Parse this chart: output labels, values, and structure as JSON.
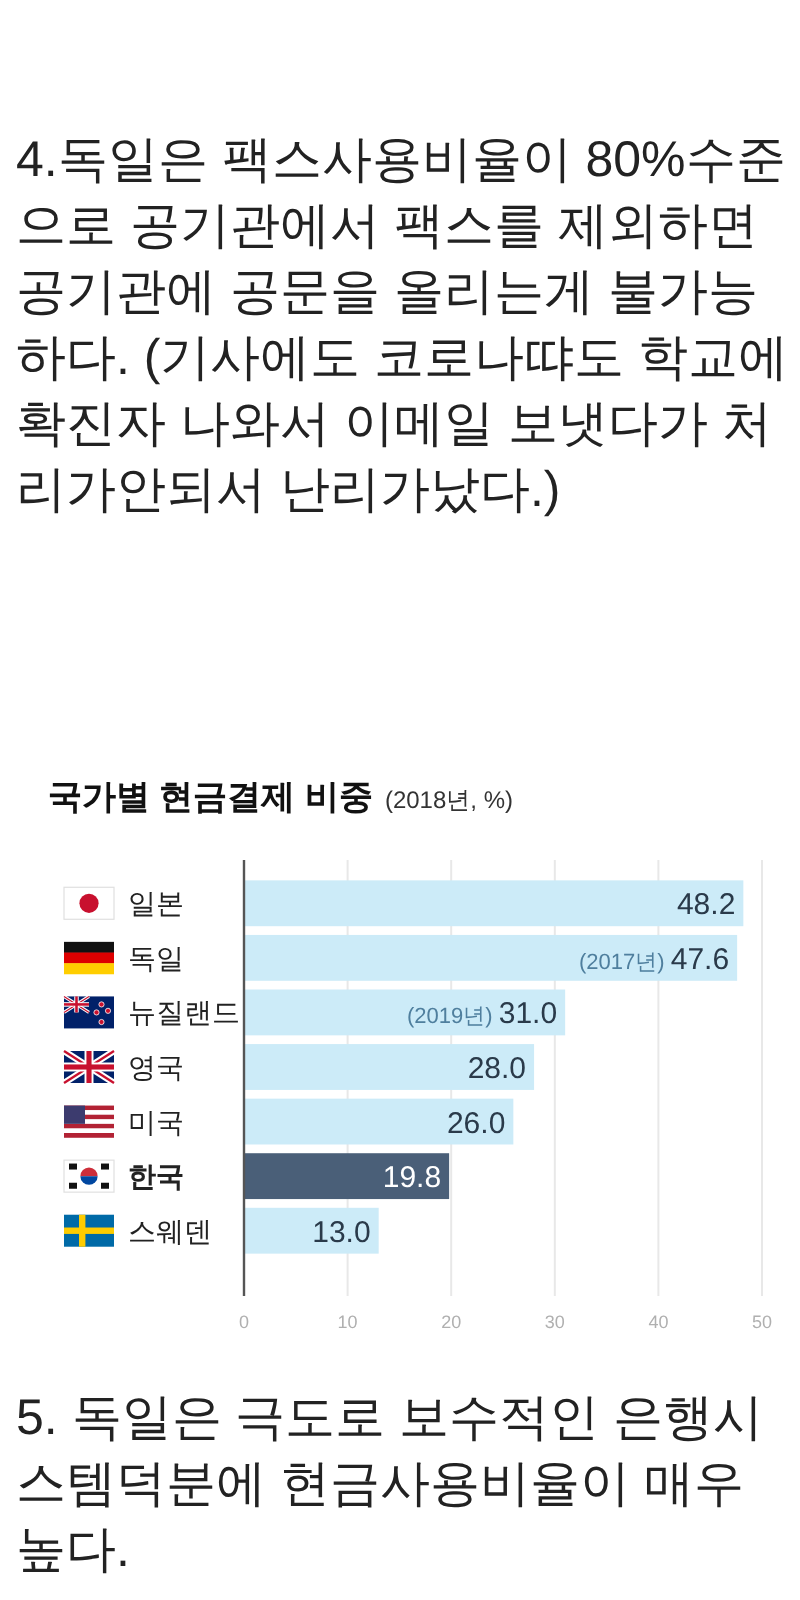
{
  "chart_data": {
    "type": "bar",
    "orientation": "horizontal",
    "title": "국가별 현금결제 비중",
    "subtitle": "(2018년, %)",
    "categories": [
      "일본",
      "독일",
      "뉴질랜드",
      "영국",
      "미국",
      "한국",
      "스웨덴"
    ],
    "values": [
      48.2,
      47.6,
      31.0,
      28.0,
      26.0,
      19.8,
      13.0
    ],
    "colors": [
      "#ccebf8",
      "#ccebf8",
      "#ccebf8",
      "#ccebf8",
      "#ccebf8",
      "#4a5f78",
      "#ccebf8"
    ],
    "value_labels": [
      "48.2",
      "(2017년) 47.6",
      "(2019년) 31.0",
      "28.0",
      "26.0",
      "19.8",
      "13.0"
    ],
    "xlim": [
      0,
      50
    ],
    "xticks": [
      0,
      10,
      20,
      30,
      40,
      50
    ],
    "grid": "x",
    "annotations": [
      "4.독일은 팩스사용비율이 80%수준으로 공기관에서 팩스를 제외하면 공기관에 공문을 올리는게 불가능하다. (기사에도 코로나땨도 학교에 확진자 나와서 이메일 보냇다가 처리가안되서 난리가났다.)",
      "5. 독일은 극도로 보수적인 은행시스템덕분에 현금사용비율이 매우 높다."
    ]
  }
}
